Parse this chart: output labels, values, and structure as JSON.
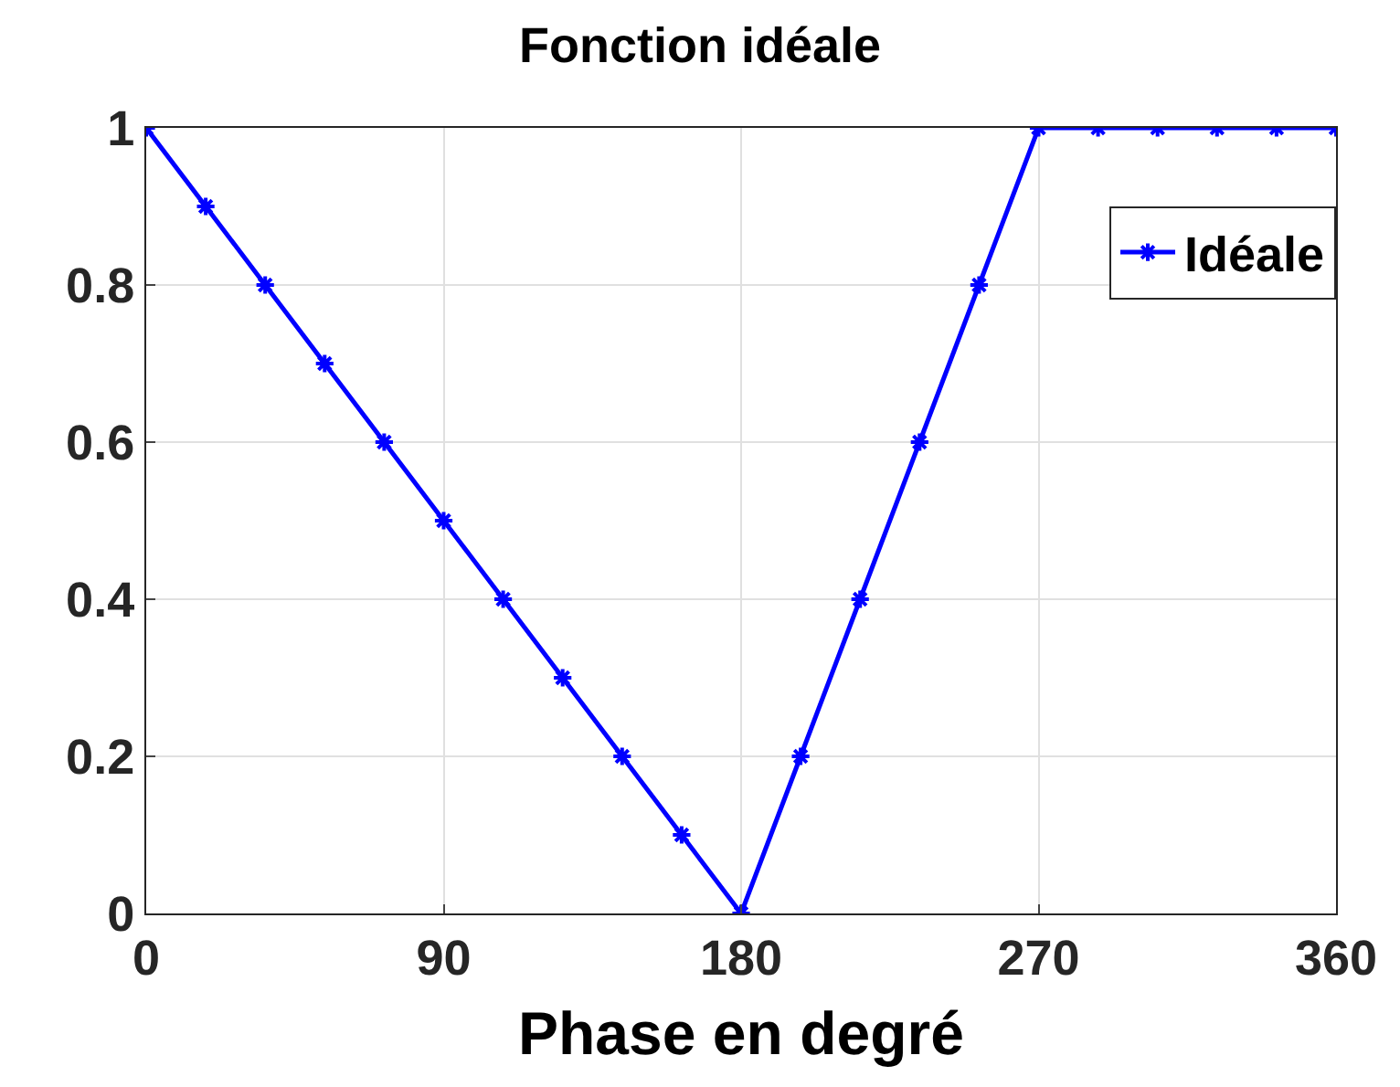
{
  "chart_data": {
    "type": "line",
    "title": "Fonction idéale",
    "xlabel": "Phase en degré",
    "x": [
      0,
      18,
      36,
      54,
      72,
      90,
      108,
      126,
      144,
      162,
      180,
      198,
      216,
      234,
      252,
      270,
      288,
      306,
      324,
      342,
      360
    ],
    "series": [
      {
        "name": "Idéale",
        "color": "#0000ff",
        "values": [
          1,
          0.9,
          0.8,
          0.7,
          0.6,
          0.5,
          0.4,
          0.3,
          0.2,
          0.1,
          0,
          0.2,
          0.4,
          0.6,
          0.8,
          1,
          1,
          1,
          1,
          1,
          1
        ]
      }
    ],
    "xlim": [
      0,
      360
    ],
    "xticks": [
      0,
      90,
      180,
      270,
      360
    ],
    "ylim": [
      0,
      1
    ],
    "yticks": [
      0,
      0.2,
      0.4,
      0.6,
      0.8,
      1
    ],
    "grid": true,
    "legend": "top right",
    "marker": "cross",
    "line_style": "solid"
  }
}
